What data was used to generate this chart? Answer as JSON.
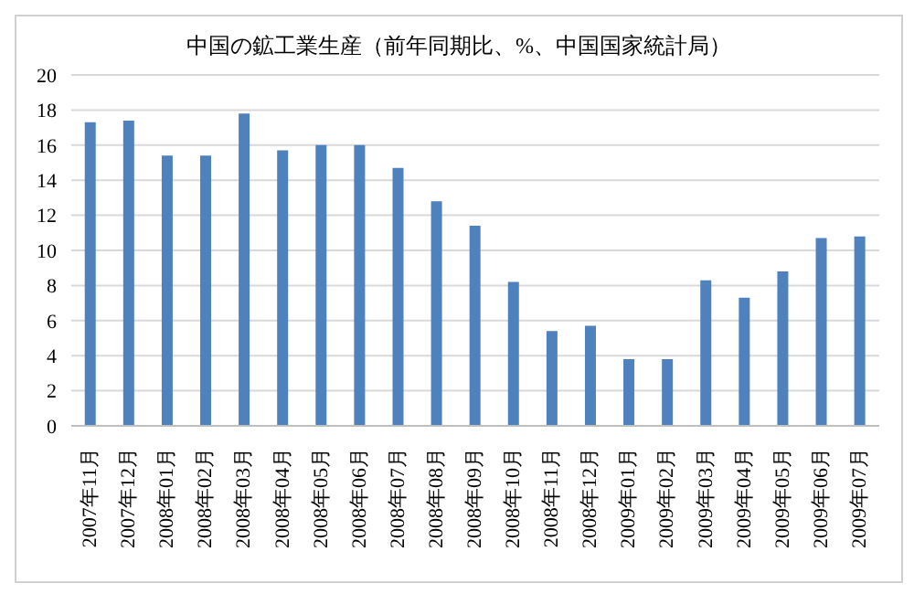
{
  "chart_data": {
    "type": "bar",
    "title": "中国の鉱工業生産（前年同期比、%、中国国家統計局）",
    "categories": [
      "2007年11月",
      "2007年12月",
      "2008年01月",
      "2008年02月",
      "2008年03月",
      "2008年04月",
      "2008年05月",
      "2008年06月",
      "2008年07月",
      "2008年08月",
      "2008年09月",
      "2008年10月",
      "2008年11月",
      "2008年12月",
      "2009年01月",
      "2009年02月",
      "2009年03月",
      "2009年04月",
      "2009年05月",
      "2009年06月",
      "2009年07月"
    ],
    "values": [
      17.3,
      17.4,
      15.4,
      15.4,
      17.8,
      15.7,
      16.0,
      16.0,
      14.7,
      12.8,
      11.4,
      8.2,
      5.4,
      5.7,
      3.8,
      3.8,
      8.3,
      7.3,
      8.8,
      10.7,
      10.8
    ],
    "color": "#4f81bd",
    "ylim": [
      0,
      20
    ],
    "yticks": [
      0,
      2,
      4,
      6,
      8,
      10,
      12,
      14,
      16,
      18,
      20
    ],
    "grid": "y",
    "legend": false
  }
}
